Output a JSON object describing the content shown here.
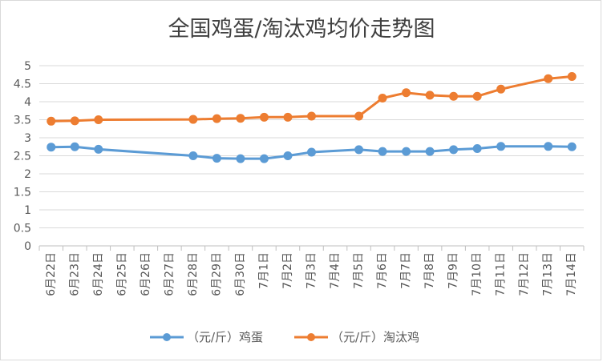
{
  "chart_data": {
    "type": "line",
    "title": "全国鸡蛋/淘汰鸡均价走势图",
    "xlabel": "",
    "ylabel": "",
    "ylim": [
      0,
      5
    ],
    "yticks": [
      "0",
      "0.5",
      "1",
      "1.5",
      "2",
      "2.5",
      "3",
      "3.5",
      "4",
      "4.5",
      "5"
    ],
    "grid": true,
    "legend_position": "bottom",
    "categories": [
      "6月22日",
      "6月23日",
      "6月24日",
      "6月25日",
      "6月26日",
      "6月27日",
      "6月28日",
      "6月29日",
      "6月30日",
      "7月1日",
      "7月2日",
      "7月3日",
      "7月4日",
      "7月5日",
      "7月6日",
      "7月7日",
      "7月8日",
      "7月9日",
      "7月10日",
      "7月11日",
      "7月12日",
      "7月13日",
      "7月14日"
    ],
    "series": [
      {
        "name": "（元/斤）鸡蛋",
        "color": "#5b9bd5",
        "values": [
          2.74,
          2.75,
          2.68,
          null,
          null,
          null,
          2.5,
          2.43,
          2.42,
          2.42,
          2.5,
          2.6,
          null,
          2.67,
          2.62,
          2.62,
          2.62,
          2.67,
          2.7,
          2.76,
          null,
          2.76,
          2.75
        ]
      },
      {
        "name": "（元/斤）淘汰鸡",
        "color": "#ed7d31",
        "values": [
          3.46,
          3.47,
          3.5,
          null,
          null,
          null,
          3.51,
          3.53,
          3.54,
          3.57,
          3.57,
          3.6,
          null,
          3.6,
          4.1,
          4.25,
          4.18,
          4.15,
          4.15,
          4.35,
          null,
          4.64,
          4.7
        ]
      }
    ]
  }
}
